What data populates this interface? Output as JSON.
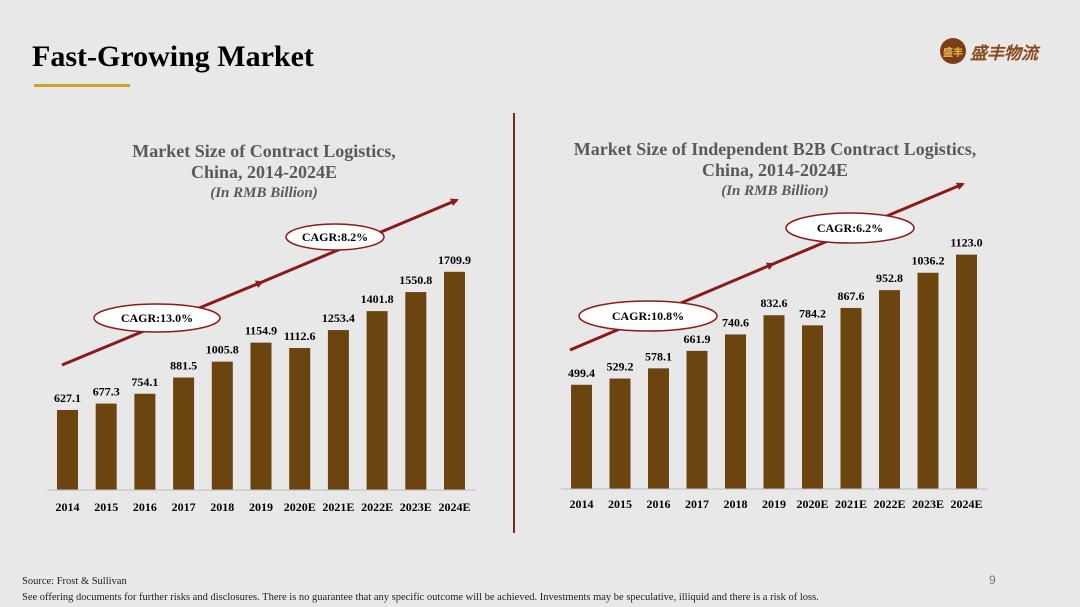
{
  "slide": {
    "title": "Fast-Growing Market",
    "logo_text": "盛丰物流",
    "logo_mark": "盛丰",
    "source": "Source: Frost & Sullivan",
    "disclaimer": "See offering documents for further risks and disclosures. There is no guarantee that any specific outcome will be achieved. Investments may be speculative, illiquid and there is a risk of loss.",
    "page_number": "9"
  },
  "colors": {
    "bar": "#6b4410",
    "arrow": "#8b1a1a",
    "accent": "#c9a227"
  },
  "chart_data": [
    {
      "type": "bar",
      "title_line1": "Market Size of Contract Logistics,",
      "title_line2": "China, 2014-2024E",
      "subtitle": "(In RMB Billion)",
      "categories": [
        "2014",
        "2015",
        "2016",
        "2017",
        "2018",
        "2019",
        "2020E",
        "2021E",
        "2022E",
        "2023E",
        "2024E"
      ],
      "values": [
        627.1,
        677.3,
        754.1,
        881.5,
        1005.8,
        1154.9,
        1112.6,
        1253.4,
        1401.8,
        1550.8,
        1709.9
      ],
      "labels": [
        "627.1",
        "677.3",
        "754.1",
        "881.5",
        "1005.8",
        "1154.9",
        "1112.6",
        "1253.4",
        "1401.8",
        "1550.8",
        "1709.9"
      ],
      "annotations": [
        "CAGR:13.0%",
        "CAGR:8.2%"
      ]
    },
    {
      "type": "bar",
      "title_line1": "Market Size of Independent B2B Contract Logistics,",
      "title_line2": "China, 2014-2024E",
      "subtitle": "(In RMB Billion)",
      "categories": [
        "2014",
        "2015",
        "2016",
        "2017",
        "2018",
        "2019",
        "2020E",
        "2021E",
        "2022E",
        "2023E",
        "2024E"
      ],
      "values": [
        499.4,
        529.2,
        578.1,
        661.9,
        740.6,
        832.6,
        784.2,
        867.6,
        952.8,
        1036.2,
        1123.0
      ],
      "labels": [
        "499.4",
        "529.2",
        "578.1",
        "661.9",
        "740.6",
        "832.6",
        "784.2",
        "867.6",
        "952.8",
        "1036.2",
        "1123.0"
      ],
      "annotations": [
        "CAGR:10.8%",
        "CAGR:6.2%"
      ]
    }
  ]
}
